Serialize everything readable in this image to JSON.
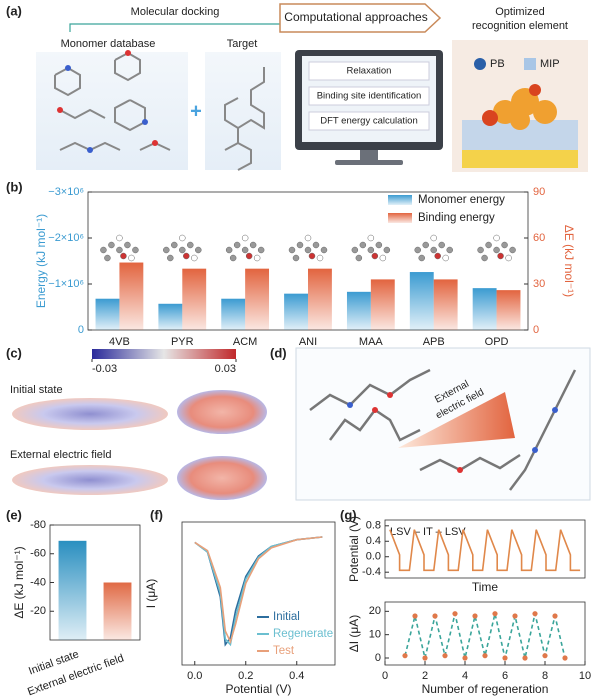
{
  "panel_labels": [
    "(a)",
    "(b)",
    "(c)",
    "(d)",
    "(e)",
    "(f)",
    "(g)"
  ],
  "panel_a": {
    "docking": "Molecular docking",
    "monomer_database": "Monomer database",
    "target": "Target",
    "approaches": "Computational approaches",
    "steps": [
      "Relaxation",
      "Binding site identification",
      "DFT energy calculation"
    ],
    "result": [
      "Optimized",
      "recognition element"
    ],
    "legend": [
      "PB",
      "MIP"
    ]
  },
  "panel_c": {
    "colorbar": {
      "min": -0.03,
      "max": 0.03,
      "colors": [
        "#2a2a9a",
        "#e6e6e6",
        "#c0282a"
      ]
    },
    "states": [
      "Initial state",
      "External electric field"
    ]
  },
  "panel_d": {
    "annotation": [
      "External",
      "electric field"
    ]
  },
  "chart_data": [
    {
      "type": "bar",
      "categories": [
        "4VB",
        "PYR",
        "ACM",
        "ANI",
        "MAA",
        "APB",
        "OPD"
      ],
      "ylabel": "Energy (kJ mol⁻¹)",
      "y2label": "ΔE (kJ mol⁻¹)",
      "ylim": [
        0,
        -3000000
      ],
      "yticks": [
        0,
        {
          "value": -1000000,
          "label": "−1×10⁶"
        },
        {
          "value": -2000000,
          "label": "−2×10⁶"
        },
        {
          "value": -3000000,
          "label": "−3×10⁶"
        }
      ],
      "y2lim": [
        0,
        90
      ],
      "y2ticks": [
        0,
        30,
        60,
        90
      ],
      "legend": "upper right",
      "series": [
        {
          "name": "Monomer energy",
          "color": "#3b9bd1",
          "values": [
            -680000,
            -570000,
            -680000,
            -790000,
            -830000,
            -1260000,
            -910000
          ]
        },
        {
          "name": "Binding energy",
          "color": "#e2643f",
          "axis": "y2",
          "values": [
            44,
            40,
            40,
            40,
            33,
            33,
            26
          ]
        }
      ]
    },
    {
      "type": "bar",
      "categories": [
        "Initial state",
        "External electric field"
      ],
      "ylabel": "ΔE (kJ mol⁻¹)",
      "values": [
        -69,
        -40
      ],
      "colors": [
        "#2a8fc0",
        "#e06a45"
      ],
      "ylim": [
        0,
        -80
      ],
      "yticks": [
        -80,
        -60,
        -40,
        -20
      ]
    },
    {
      "type": "line",
      "xlabel": "Potential (V)",
      "ylabel": "I (μA)",
      "x": [
        0,
        0.05,
        0.1,
        0.12,
        0.14,
        0.16,
        0.2,
        0.25,
        0.3,
        0.4,
        0.5
      ],
      "xlim": [
        -0.05,
        0.55
      ],
      "xticks": [
        {
          "value": 0,
          "label": "0.0"
        },
        0.2,
        0.4
      ],
      "ylim": [
        -95,
        10
      ],
      "legend": "lower right",
      "series": [
        {
          "name": "Initial",
          "color": "#2d6e9e",
          "values": [
            -5,
            -12,
            -45,
            -80,
            -75,
            -55,
            -30,
            -15,
            -8,
            -3,
            -1
          ]
        },
        {
          "name": "Regenerate",
          "color": "#6bbfd0",
          "values": [
            -5,
            -12,
            -42,
            -76,
            -80,
            -60,
            -32,
            -16,
            -8,
            -3,
            -1
          ]
        },
        {
          "name": "Test",
          "color": "#e8a07a",
          "values": [
            -5,
            -11,
            -38,
            -70,
            -78,
            -65,
            -35,
            -17,
            -9,
            -3,
            -1
          ]
        }
      ]
    },
    {
      "type": "line",
      "ylabel": "Potential (V)",
      "xlabel": "Time",
      "annotation": "LSV – IT – LSV",
      "x": [
        0,
        4,
        4,
        8,
        10,
        14,
        14,
        18,
        20,
        24,
        24,
        28,
        30,
        34,
        34,
        38,
        40,
        44,
        44,
        48,
        50,
        54,
        54,
        58,
        60,
        64,
        64,
        68,
        70,
        74,
        74,
        78
      ],
      "xlim": [
        -2,
        80
      ],
      "ylim": [
        -0.55,
        0.95
      ],
      "yticks": [
        -0.4,
        {
          "value": 0,
          "label": "0.0"
        },
        0.4,
        0.8
      ],
      "series": [
        {
          "color": "#e0884a",
          "values": [
            0.7,
            0.05,
            -0.35,
            -0.35,
            0.7,
            0.05,
            -0.35,
            -0.35,
            0.7,
            0.05,
            -0.35,
            -0.35,
            0.7,
            0.05,
            -0.35,
            -0.35,
            0.7,
            0.05,
            -0.35,
            -0.35,
            0.7,
            0.05,
            -0.35,
            -0.35,
            0.7,
            0.05,
            -0.35,
            -0.35,
            0.7,
            0.05,
            -0.35,
            -0.35
          ]
        }
      ]
    },
    {
      "type": "line",
      "xlabel": "Number of regeneration",
      "ylabel": "ΔI (μA)",
      "line_style": "dashed",
      "x": [
        1,
        1.5,
        2,
        2.5,
        3,
        3.5,
        4,
        4.5,
        5,
        5.5,
        6,
        6.5,
        7,
        7.5,
        8,
        8.5,
        9
      ],
      "xlim": [
        0,
        10
      ],
      "xticks": [
        0,
        2,
        4,
        6,
        8,
        10
      ],
      "ylim": [
        -3,
        24
      ],
      "yticks": [
        0,
        10,
        20
      ],
      "series": [
        {
          "color": "#3aa59a",
          "marker_color": "#e0784a",
          "values": [
            1,
            18,
            0,
            18,
            1,
            19,
            0,
            18,
            1,
            19,
            0,
            18,
            0,
            19,
            1,
            18,
            0
          ]
        }
      ]
    }
  ]
}
